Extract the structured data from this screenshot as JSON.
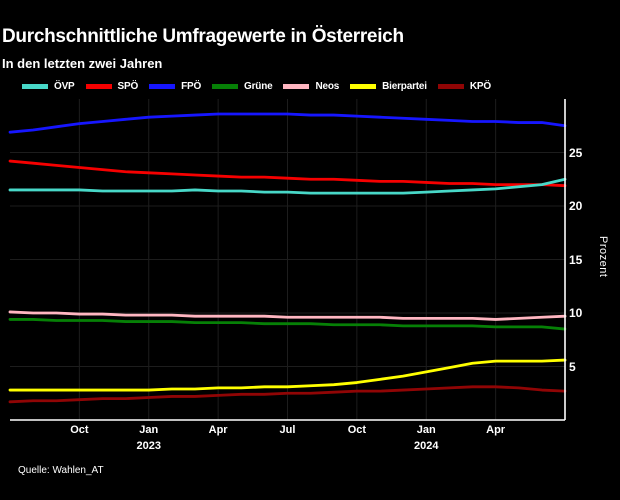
{
  "header": {
    "title": "Durchschnittliche Umfragewerte in Österreich",
    "subtitle": "In den letzten zwei Jahren"
  },
  "source": "Quelle: Wahlen_AT",
  "colors": {
    "background": "#000000",
    "text": "#ffffff",
    "grid": "#1d1d1d",
    "axis": "#ffffff"
  },
  "chart_data": {
    "type": "line",
    "title": "Durchschnittliche Umfragewerte in Österreich",
    "subtitle": "In den letzten zwei Jahren",
    "ylabel": "Prozent",
    "ylim": [
      0,
      30
    ],
    "yticks": [
      5,
      10,
      15,
      20,
      25
    ],
    "grid": true,
    "legend_position": "top",
    "x_unit": "months",
    "x_range_labels": [
      "Jul 2022",
      "Jul 2024"
    ],
    "xlim": [
      0,
      24
    ],
    "xticks": [
      {
        "m": 3,
        "label": "Oct"
      },
      {
        "m": 6,
        "label": "Jan",
        "year": "2023"
      },
      {
        "m": 9,
        "label": "Apr"
      },
      {
        "m": 12,
        "label": "Jul"
      },
      {
        "m": 15,
        "label": "Oct"
      },
      {
        "m": 18,
        "label": "Jan",
        "year": "2024"
      },
      {
        "m": 21,
        "label": "Apr"
      }
    ],
    "series": [
      {
        "name": "ÖVP",
        "color": "#48d8c8",
        "values": [
          21.5,
          21.5,
          21.5,
          21.5,
          21.4,
          21.4,
          21.4,
          21.4,
          21.5,
          21.4,
          21.4,
          21.3,
          21.3,
          21.2,
          21.2,
          21.2,
          21.2,
          21.2,
          21.3,
          21.4,
          21.5,
          21.6,
          21.8,
          22.0,
          22.5
        ]
      },
      {
        "name": "SPÖ",
        "color": "#f60000",
        "values": [
          24.2,
          24.0,
          23.8,
          23.6,
          23.4,
          23.2,
          23.1,
          23.0,
          22.9,
          22.8,
          22.7,
          22.7,
          22.6,
          22.5,
          22.5,
          22.4,
          22.3,
          22.3,
          22.2,
          22.1,
          22.1,
          22.0,
          22.0,
          22.0,
          21.9
        ]
      },
      {
        "name": "FPÖ",
        "color": "#1616ff",
        "values": [
          26.9,
          27.1,
          27.4,
          27.7,
          27.9,
          28.1,
          28.3,
          28.4,
          28.5,
          28.6,
          28.6,
          28.6,
          28.6,
          28.5,
          28.5,
          28.4,
          28.3,
          28.2,
          28.1,
          28.0,
          27.9,
          27.9,
          27.8,
          27.8,
          27.5
        ]
      },
      {
        "name": "Grüne",
        "color": "#068006",
        "values": [
          9.4,
          9.4,
          9.3,
          9.3,
          9.3,
          9.2,
          9.2,
          9.2,
          9.1,
          9.1,
          9.1,
          9.0,
          9.0,
          9.0,
          8.9,
          8.9,
          8.9,
          8.8,
          8.8,
          8.8,
          8.8,
          8.7,
          8.7,
          8.7,
          8.5
        ]
      },
      {
        "name": "Neos",
        "color": "#ffb6c1",
        "values": [
          10.1,
          10.0,
          10.0,
          9.9,
          9.9,
          9.8,
          9.8,
          9.8,
          9.7,
          9.7,
          9.7,
          9.7,
          9.6,
          9.6,
          9.6,
          9.6,
          9.6,
          9.5,
          9.5,
          9.5,
          9.5,
          9.4,
          9.5,
          9.6,
          9.7
        ]
      },
      {
        "name": "Bierpartei",
        "color": "#ffff00",
        "values": [
          2.8,
          2.8,
          2.8,
          2.8,
          2.8,
          2.8,
          2.8,
          2.9,
          2.9,
          3.0,
          3.0,
          3.1,
          3.1,
          3.2,
          3.3,
          3.5,
          3.8,
          4.1,
          4.5,
          4.9,
          5.3,
          5.5,
          5.5,
          5.5,
          5.6
        ]
      },
      {
        "name": "KPÖ",
        "color": "#900505",
        "values": [
          1.7,
          1.8,
          1.8,
          1.9,
          2.0,
          2.0,
          2.1,
          2.2,
          2.2,
          2.3,
          2.4,
          2.4,
          2.5,
          2.5,
          2.6,
          2.7,
          2.7,
          2.8,
          2.9,
          3.0,
          3.1,
          3.1,
          3.0,
          2.8,
          2.7
        ]
      }
    ]
  }
}
